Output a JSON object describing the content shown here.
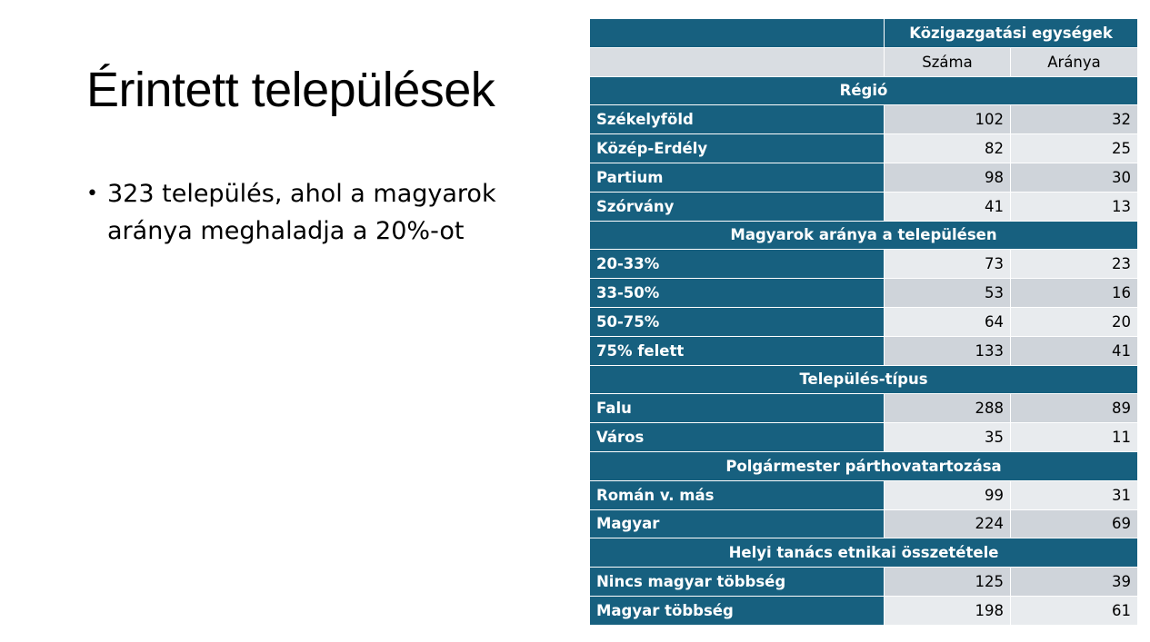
{
  "title": "Érintett települések",
  "bullets": [
    "323 település, ahol a magyarok aránya meghaladja a 20%-ot"
  ],
  "table": {
    "header": "Közigazgatási egységek",
    "columns": [
      "Száma",
      "Aránya"
    ],
    "groups": [
      {
        "title": "Régió",
        "rows": [
          {
            "label": "Székelyföld",
            "count": "102",
            "share": "32"
          },
          {
            "label": "Közép-Erdély",
            "count": "82",
            "share": "25"
          },
          {
            "label": "Partium",
            "count": "98",
            "share": "30"
          },
          {
            "label": "Szórvány",
            "count": "41",
            "share": "13"
          }
        ]
      },
      {
        "title": "Magyarok aránya a településen",
        "rows": [
          {
            "label": "20-33%",
            "count": "73",
            "share": "23"
          },
          {
            "label": "33-50%",
            "count": "53",
            "share": "16"
          },
          {
            "label": "50-75%",
            "count": "64",
            "share": "20"
          },
          {
            "label": "75% felett",
            "count": "133",
            "share": "41"
          }
        ]
      },
      {
        "title": "Település-típus",
        "rows": [
          {
            "label": "Falu",
            "count": "288",
            "share": "89"
          },
          {
            "label": "Város",
            "count": "35",
            "share": "11"
          }
        ]
      },
      {
        "title": "Polgármester párthovatartozása",
        "rows": [
          {
            "label": "Román v. más",
            "count": "99",
            "share": "31"
          },
          {
            "label": "Magyar",
            "count": "224",
            "share": "69"
          }
        ]
      },
      {
        "title": "Helyi tanács etnikai összetétele",
        "rows": [
          {
            "label": "Nincs magyar többség",
            "count": "125",
            "share": "39"
          },
          {
            "label": "Magyar többség",
            "count": "198",
            "share": "61"
          }
        ]
      }
    ]
  },
  "colors": {
    "header": "#17607f",
    "row_dark": "#cfd4da",
    "row_light": "#e8ebee"
  }
}
